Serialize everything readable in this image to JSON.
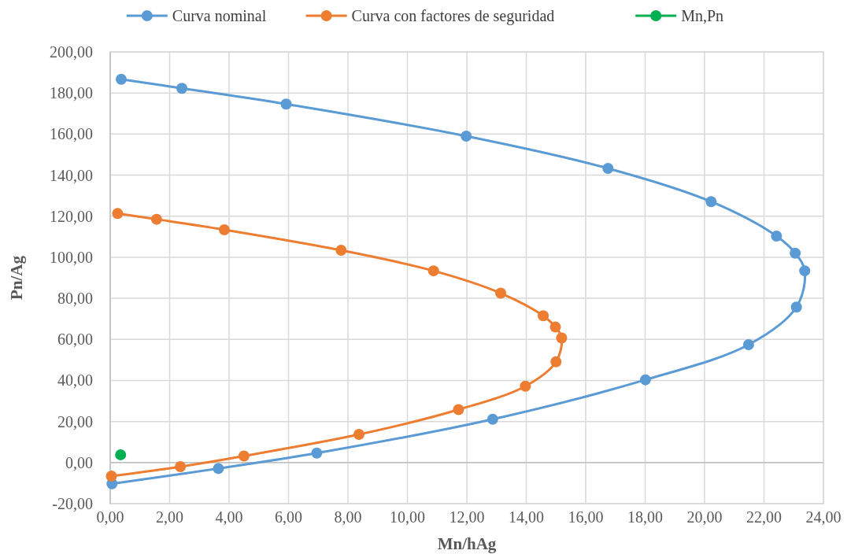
{
  "chart_data": {
    "type": "line",
    "xlabel": "Mn/hAg",
    "ylabel": "Pn/Ag",
    "xlim": [
      0,
      24
    ],
    "ylim": [
      -20,
      200
    ],
    "xticks": [
      {
        "value": 0,
        "label": "0,00"
      },
      {
        "value": 2,
        "label": "2,00"
      },
      {
        "value": 4,
        "label": "4,00"
      },
      {
        "value": 6,
        "label": "6,00"
      },
      {
        "value": 8,
        "label": "8,00"
      },
      {
        "value": 10,
        "label": "10,00"
      },
      {
        "value": 12,
        "label": "12,00"
      },
      {
        "value": 14,
        "label": "14,00"
      },
      {
        "value": 16,
        "label": "16,00"
      },
      {
        "value": 18,
        "label": "18,00"
      },
      {
        "value": 20,
        "label": "20,00"
      },
      {
        "value": 22,
        "label": "22,00"
      },
      {
        "value": 24,
        "label": "24,00"
      }
    ],
    "yticks": [
      {
        "value": -20,
        "label": "-20,00"
      },
      {
        "value": 0,
        "label": "0,00"
      },
      {
        "value": 20,
        "label": "20,00"
      },
      {
        "value": 40,
        "label": "40,00"
      },
      {
        "value": 60,
        "label": "60,00"
      },
      {
        "value": 80,
        "label": "80,00"
      },
      {
        "value": 100,
        "label": "100,00"
      },
      {
        "value": 120,
        "label": "120,00"
      },
      {
        "value": 140,
        "label": "140,00"
      },
      {
        "value": 160,
        "label": "160,00"
      },
      {
        "value": 180,
        "label": "180,00"
      },
      {
        "value": 200,
        "label": "200,00"
      }
    ],
    "grid": true,
    "legend": "top",
    "marker": "circle",
    "line_style": "solid",
    "series": [
      {
        "name": "Curva nominal",
        "color": "#5b9bd5",
        "x": [
          0.37,
          2.41,
          5.92,
          11.98,
          16.75,
          20.22,
          22.42,
          23.05,
          23.37,
          23.09,
          21.48,
          18.01,
          12.87,
          6.95,
          3.64,
          0.06
        ],
        "values": [
          186.7,
          182.3,
          174.6,
          159.0,
          143.3,
          127.1,
          110.3,
          102.0,
          93.4,
          75.7,
          57.4,
          40.3,
          21.1,
          4.6,
          -2.9,
          -10.3
        ]
      },
      {
        "name": "Curva con factores de seguridad",
        "color": "#ed7d31",
        "x": [
          0.25,
          1.56,
          3.84,
          7.77,
          10.88,
          13.14,
          14.57,
          14.98,
          15.19,
          15.0,
          13.97,
          11.72,
          8.37,
          4.5,
          2.36,
          0.04
        ],
        "values": [
          121.3,
          118.5,
          113.4,
          103.4,
          93.4,
          82.5,
          71.5,
          66.0,
          60.7,
          49.1,
          37.2,
          25.8,
          13.7,
          3.2,
          -2.0,
          -6.6
        ]
      },
      {
        "name": "Mn,Pn",
        "color": "#00b050",
        "type": "scatter",
        "x": [
          0.35
        ],
        "values": [
          3.8
        ]
      }
    ]
  }
}
